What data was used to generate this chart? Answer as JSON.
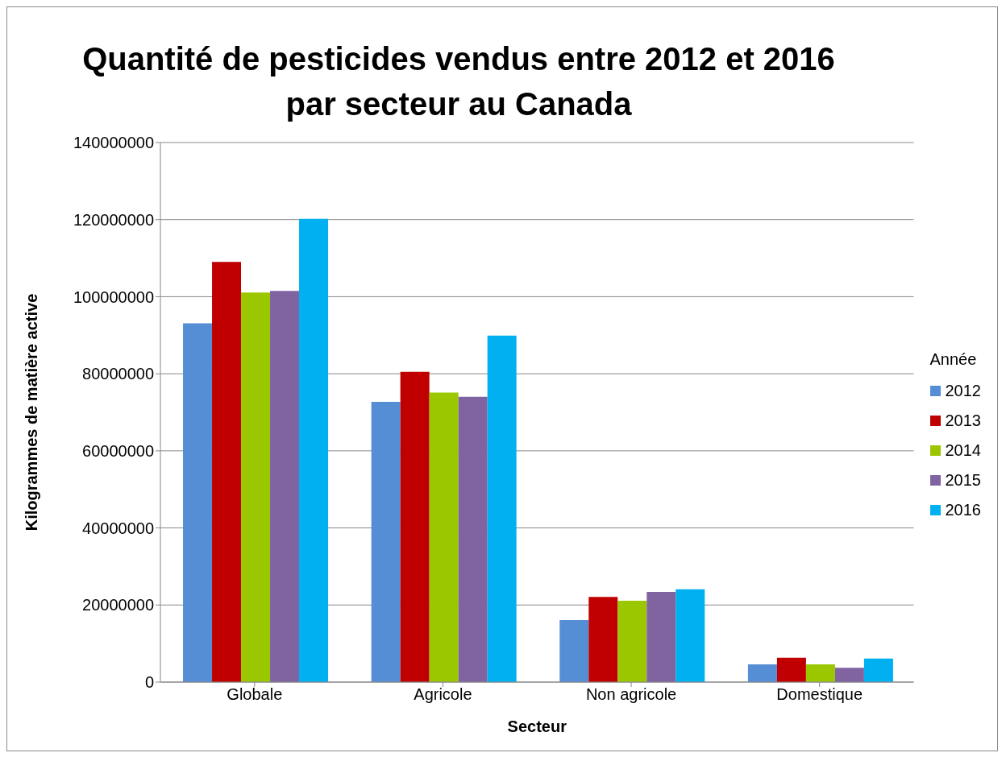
{
  "chart_data": {
    "type": "bar",
    "title": "Quantité de pesticides vendus entre 2012 et 2016 par secteur au Canada",
    "xlabel": "Secteur",
    "ylabel": "Kilogrammes de matière active",
    "legend_title": "Année",
    "categories": [
      "Globale",
      "Agricole",
      "Non agricole",
      "Domestique"
    ],
    "series": [
      {
        "name": "2012",
        "color": "#558ed5",
        "values": [
          93100000,
          72700000,
          16100000,
          4600000
        ]
      },
      {
        "name": "2013",
        "color": "#c00000",
        "values": [
          109000000,
          80500000,
          22100000,
          6300000
        ]
      },
      {
        "name": "2014",
        "color": "#9bc700",
        "values": [
          101100000,
          75100000,
          21100000,
          4600000
        ]
      },
      {
        "name": "2015",
        "color": "#8064a2",
        "values": [
          101500000,
          74000000,
          23400000,
          3700000
        ]
      },
      {
        "name": "2016",
        "color": "#00b0f0",
        "values": [
          120200000,
          89900000,
          24100000,
          6100000
        ]
      }
    ],
    "ylim": [
      0,
      140000000
    ],
    "yticks": [
      0,
      20000000,
      40000000,
      60000000,
      80000000,
      100000000,
      120000000,
      140000000
    ],
    "grid": "y",
    "legend": "right"
  }
}
